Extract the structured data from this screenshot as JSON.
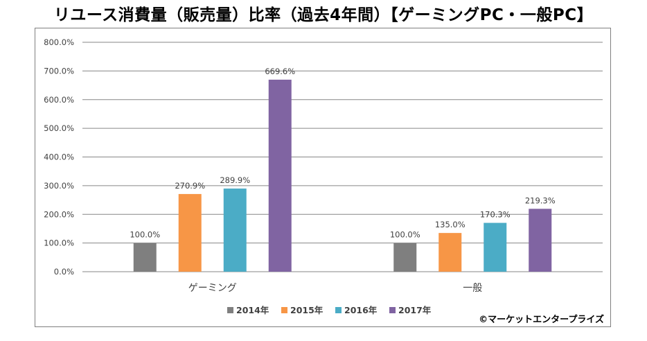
{
  "title": "リユース消費量（販売量）比率（過去4年間）【ゲーミングPC・一般PC】",
  "credit": "©マーケットエンタープライズ",
  "chart_data": {
    "type": "bar",
    "categories": [
      "ゲーミング",
      "一般"
    ],
    "series": [
      {
        "name": "2014年",
        "color": "#7f7f7f",
        "values": [
          100.0,
          100.0
        ],
        "labels": [
          "100.0%",
          "100.0%"
        ]
      },
      {
        "name": "2015年",
        "color": "#f79646",
        "values": [
          270.9,
          135.0
        ],
        "labels": [
          "270.9%",
          "135.0%"
        ]
      },
      {
        "name": "2016年",
        "color": "#4bacc6",
        "values": [
          289.9,
          170.3
        ],
        "labels": [
          "289.9%",
          "170.3%"
        ]
      },
      {
        "name": "2017年",
        "color": "#8064a2",
        "values": [
          669.6,
          219.3
        ],
        "labels": [
          "669.6%",
          "219.3%"
        ]
      }
    ],
    "yticks": [
      "0.0%",
      "100.0%",
      "200.0%",
      "300.0%",
      "400.0%",
      "500.0%",
      "600.0%",
      "700.0%",
      "800.0%"
    ],
    "ylim": [
      0,
      800
    ],
    "grid": true,
    "legend": "bottom"
  }
}
